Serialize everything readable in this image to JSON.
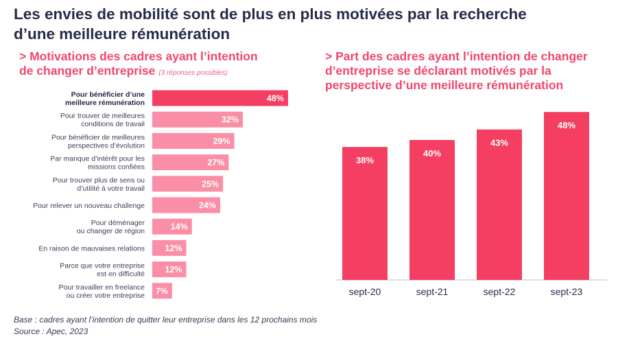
{
  "title_line1": "Les envies de mobilité sont de plus en plus motivées par la recherche",
  "title_line2": "d’une meilleure rémunération",
  "left_subtitle_line1": "> Motivations des cadres ayant l’intention",
  "left_subtitle_line2": "de changer d’entreprise",
  "left_note": "(3 réponses possibles)",
  "right_subtitle_line1": "> Part des cadres ayant l’intention de changer",
  "right_subtitle_line2": "d’entreprise se déclarant motivés par la",
  "right_subtitle_line3": "perspective d’une meilleure rémunération",
  "footer_base": "Base : cadres ayant l’intention de quitter leur entreprise dans les 12 prochains mois",
  "footer_source": "Source : Apec, 2023",
  "colors": {
    "highlight": "#f43f62",
    "bar": "#f98ea6",
    "title": "#262b4a",
    "accent": "#f0476b"
  },
  "chart_data": [
    {
      "type": "bar",
      "orientation": "horizontal",
      "categories": [
        [
          "Pour bénéficier d’une",
          "meilleure rémunération"
        ],
        [
          "Pour trouver de meilleures",
          "conditions de travail"
        ],
        [
          "Pour bénéficier de meilleures",
          "perspectives d’évolution"
        ],
        [
          "Par manque d’intérêt pour les",
          "missions confiées"
        ],
        [
          "Pour trouver plus de sens ou",
          "d’utilité à votre travail"
        ],
        [
          "Pour relever un nouveau challenge"
        ],
        [
          "Pour déménager",
          "ou changer de région"
        ],
        [
          "En raison de mauvaises relations"
        ],
        [
          "Parce que votre entreprise",
          "est en difficulté"
        ],
        [
          "Pour travailler en freelance",
          "ou créer votre entreprise"
        ]
      ],
      "values": [
        48,
        32,
        29,
        27,
        25,
        24,
        14,
        12,
        12,
        7
      ],
      "value_labels": [
        "48%",
        "32%",
        "29%",
        "27%",
        "25%",
        "24%",
        "14%",
        "12%",
        "12%",
        "7%"
      ],
      "highlight_index": 0,
      "unit": "%"
    },
    {
      "type": "bar",
      "orientation": "vertical",
      "categories": [
        "sept-20",
        "sept-21",
        "sept-22",
        "sept-23"
      ],
      "values": [
        38,
        40,
        43,
        48
      ],
      "value_labels": [
        "38%",
        "40%",
        "43%",
        "48%"
      ],
      "unit": "%"
    }
  ]
}
